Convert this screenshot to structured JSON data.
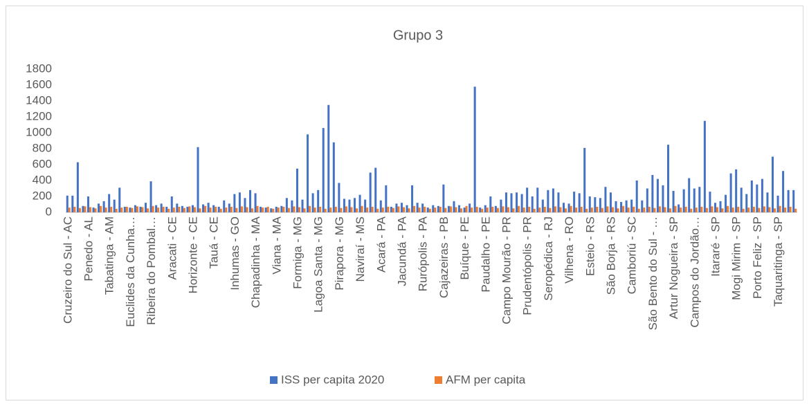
{
  "chart_data": {
    "type": "bar",
    "title": "Grupo 3",
    "categories": [
      "Cruzeiro do Sul - AC",
      null,
      null,
      null,
      "Penedo - AL",
      null,
      null,
      null,
      "Tabatinga - AM",
      null,
      null,
      null,
      "Euclides da Cunha…",
      null,
      null,
      null,
      "Ribeira do Pombal…",
      null,
      null,
      null,
      "Aracati - CE",
      null,
      null,
      null,
      "Horizonte - CE",
      null,
      null,
      null,
      "Tauá - CE",
      null,
      null,
      null,
      "Inhumas - GO",
      null,
      null,
      null,
      "Chapadinha - MA",
      null,
      null,
      null,
      "Viana - MA",
      null,
      null,
      null,
      "Formiga - MG",
      null,
      null,
      null,
      "Lagoa Santa - MG",
      null,
      null,
      null,
      "Pirapora - MG",
      null,
      null,
      null,
      "Naviraí - MS",
      null,
      null,
      null,
      "Acará - PA",
      null,
      null,
      null,
      "Jacundá - PA",
      null,
      null,
      null,
      "Rurópolis - PA",
      null,
      null,
      null,
      "Cajazeiras - PB",
      null,
      null,
      null,
      "Buíque - PE",
      null,
      null,
      null,
      "Paudalho - PE",
      null,
      null,
      null,
      "Campo Mourão - PR",
      null,
      null,
      null,
      "Prudentópolis - PR",
      null,
      null,
      null,
      "Seropédica - RJ",
      null,
      null,
      null,
      "Vilhena - RO",
      null,
      null,
      null,
      "Esteio - RS",
      null,
      null,
      null,
      "São Borja - RS",
      null,
      null,
      null,
      "Camboriú - SC",
      null,
      null,
      null,
      "São Bento do Sul - …",
      null,
      null,
      null,
      "Artur Nogueira - SP",
      null,
      null,
      null,
      "Campos do Jordão…",
      null,
      null,
      null,
      "Itararé - SP",
      null,
      null,
      null,
      "Mogi Mirim - SP",
      null,
      null,
      null,
      "Porto Feliz - SP",
      null,
      null,
      null,
      "Taquaritinga - SP",
      null,
      null,
      null
    ],
    "series": [
      {
        "name": "ISS per capita 2020",
        "color": "#4472c4",
        "values": [
          210,
          210,
          630,
          80,
          200,
          60,
          110,
          140,
          230,
          160,
          310,
          70,
          60,
          90,
          70,
          120,
          390,
          90,
          110,
          70,
          200,
          110,
          80,
          70,
          90,
          820,
          100,
          120,
          90,
          70,
          150,
          110,
          230,
          250,
          180,
          280,
          240,
          70,
          60,
          50,
          70,
          80,
          180,
          150,
          550,
          160,
          980,
          240,
          280,
          1060,
          1350,
          880,
          370,
          170,
          160,
          180,
          220,
          160,
          500,
          560,
          150,
          340,
          70,
          110,
          120,
          90,
          340,
          120,
          110,
          60,
          90,
          80,
          350,
          80,
          140,
          90,
          60,
          110,
          1580,
          60,
          90,
          200,
          80,
          160,
          250,
          240,
          250,
          230,
          310,
          200,
          310,
          160,
          280,
          300,
          250,
          120,
          110,
          260,
          240,
          810,
          200,
          190,
          180,
          320,
          250,
          140,
          130,
          150,
          160,
          400,
          150,
          300,
          470,
          420,
          340,
          850,
          270,
          100,
          290,
          430,
          300,
          320,
          1150,
          260,
          120,
          140,
          220,
          490,
          540,
          310,
          230,
          400,
          350,
          420,
          250,
          700,
          210,
          520,
          280,
          280
        ]
      },
      {
        "name": "AFM per capita",
        "color": "#ed7d31",
        "values": [
          60,
          70,
          55,
          75,
          65,
          50,
          80,
          60,
          70,
          45,
          60,
          70,
          55,
          75,
          65,
          50,
          80,
          60,
          70,
          45,
          60,
          70,
          55,
          75,
          65,
          50,
          80,
          60,
          70,
          45,
          60,
          70,
          55,
          75,
          65,
          50,
          80,
          60,
          70,
          45,
          60,
          70,
          55,
          75,
          65,
          50,
          80,
          60,
          70,
          45,
          60,
          70,
          55,
          75,
          65,
          50,
          80,
          60,
          70,
          45,
          60,
          70,
          55,
          75,
          65,
          50,
          80,
          60,
          70,
          45,
          60,
          70,
          55,
          75,
          65,
          50,
          80,
          60,
          70,
          45,
          60,
          70,
          55,
          75,
          65,
          50,
          80,
          60,
          70,
          45,
          60,
          70,
          55,
          75,
          65,
          50,
          80,
          60,
          70,
          45,
          60,
          70,
          55,
          75,
          65,
          50,
          80,
          60,
          70,
          45,
          60,
          70,
          55,
          75,
          65,
          50,
          80,
          60,
          70,
          45,
          60,
          70,
          55,
          75,
          65,
          50,
          80,
          60,
          70,
          45,
          60,
          70,
          55,
          75,
          65,
          50,
          80,
          60,
          70,
          45
        ]
      }
    ],
    "ylim": [
      0,
      1800
    ],
    "yticks": [
      0,
      200,
      400,
      600,
      800,
      1000,
      1200,
      1400,
      1600,
      1800
    ],
    "grid": false,
    "legend": "bottom"
  }
}
